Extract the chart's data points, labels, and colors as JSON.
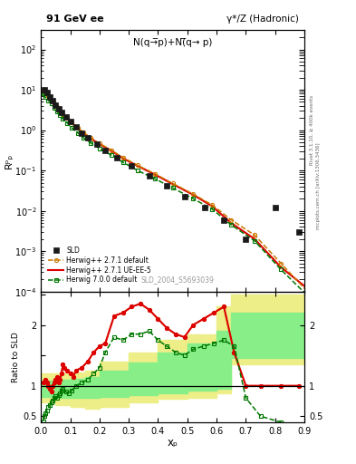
{
  "title_left": "91 GeV ee",
  "title_right": "γ*/Z (Hadronic)",
  "ylabel_main": "Rᵖₚ",
  "annotation": "N(q→̅p)+N(̅q→ p)",
  "watermark": "SLD_2004_S5693039",
  "right_label_top": "Rivet 3.1.10, ≥ 400k events",
  "right_label_bot": "mcplots.cern.ch [arXiv:1306.3436]",
  "xlabel": "xₚ",
  "ylabel_ratio": "Ratio to SLD",
  "sld_x": [
    0.012,
    0.02,
    0.03,
    0.04,
    0.05,
    0.06,
    0.07,
    0.085,
    0.1,
    0.12,
    0.14,
    0.16,
    0.19,
    0.22,
    0.26,
    0.31,
    0.37,
    0.43,
    0.49,
    0.56,
    0.625,
    0.7,
    0.8,
    0.88
  ],
  "sld_y": [
    10.0,
    8.5,
    6.8,
    5.3,
    4.2,
    3.3,
    2.7,
    2.1,
    1.6,
    1.2,
    0.85,
    0.65,
    0.45,
    0.32,
    0.21,
    0.13,
    0.075,
    0.042,
    0.022,
    0.012,
    0.006,
    0.002,
    0.012,
    0.003
  ],
  "hwpp_default_x": [
    0.008,
    0.015,
    0.025,
    0.035,
    0.045,
    0.055,
    0.065,
    0.075,
    0.09,
    0.105,
    0.125,
    0.145,
    0.17,
    0.2,
    0.24,
    0.28,
    0.33,
    0.39,
    0.45,
    0.52,
    0.585,
    0.65,
    0.73,
    0.82,
    0.91
  ],
  "hwpp_default_y": [
    9.5,
    8.0,
    7.0,
    5.8,
    4.7,
    3.8,
    3.1,
    2.5,
    2.0,
    1.55,
    1.15,
    0.88,
    0.65,
    0.47,
    0.32,
    0.21,
    0.135,
    0.082,
    0.048,
    0.026,
    0.014,
    0.006,
    0.0025,
    0.0005,
    0.0001
  ],
  "hwpp_ueee5_x": [
    0.008,
    0.015,
    0.025,
    0.035,
    0.045,
    0.055,
    0.065,
    0.075,
    0.09,
    0.105,
    0.125,
    0.145,
    0.17,
    0.2,
    0.24,
    0.28,
    0.33,
    0.39,
    0.45,
    0.52,
    0.585,
    0.65,
    0.73,
    0.82,
    0.91
  ],
  "hwpp_ueee5_y": [
    9.2,
    7.8,
    6.8,
    5.6,
    4.5,
    3.65,
    3.0,
    2.45,
    1.95,
    1.5,
    1.12,
    0.85,
    0.62,
    0.45,
    0.31,
    0.2,
    0.13,
    0.079,
    0.046,
    0.025,
    0.013,
    0.005,
    0.002,
    0.0004,
    0.00012
  ],
  "hw700_x": [
    0.008,
    0.015,
    0.025,
    0.035,
    0.045,
    0.055,
    0.065,
    0.075,
    0.09,
    0.105,
    0.125,
    0.145,
    0.17,
    0.2,
    0.24,
    0.28,
    0.33,
    0.39,
    0.45,
    0.52,
    0.585,
    0.65,
    0.73,
    0.82,
    0.91
  ],
  "hw700_y": [
    8.0,
    6.5,
    5.5,
    4.5,
    3.6,
    2.9,
    2.35,
    1.9,
    1.5,
    1.15,
    0.86,
    0.65,
    0.48,
    0.35,
    0.24,
    0.16,
    0.1,
    0.062,
    0.037,
    0.02,
    0.011,
    0.0045,
    0.0018,
    0.00035,
    8e-05
  ],
  "ratio_hwpp_ueee5_x": [
    0.008,
    0.015,
    0.02,
    0.025,
    0.03,
    0.035,
    0.04,
    0.045,
    0.05,
    0.055,
    0.06,
    0.065,
    0.07,
    0.075,
    0.08,
    0.09,
    0.1,
    0.11,
    0.12,
    0.14,
    0.16,
    0.18,
    0.2,
    0.22,
    0.25,
    0.28,
    0.31,
    0.34,
    0.37,
    0.4,
    0.43,
    0.46,
    0.49,
    0.52,
    0.555,
    0.59,
    0.625,
    0.66,
    0.7,
    0.75,
    0.82,
    0.88
  ],
  "ratio_hwpp_ueee5_y": [
    1.05,
    1.1,
    1.05,
    1.0,
    0.95,
    0.9,
    1.0,
    1.05,
    1.1,
    1.15,
    1.05,
    1.1,
    1.2,
    1.35,
    1.3,
    1.25,
    1.2,
    1.15,
    1.25,
    1.3,
    1.4,
    1.55,
    1.65,
    1.7,
    2.15,
    2.2,
    2.3,
    2.35,
    2.25,
    2.1,
    1.95,
    1.85,
    1.8,
    2.0,
    2.1,
    2.2,
    2.3,
    1.55,
    1.0,
    1.0,
    1.0,
    1.0
  ],
  "ratio_hwpp_default_x": [
    0.008,
    0.015,
    0.02,
    0.025,
    0.03,
    0.035,
    0.04,
    0.045,
    0.05,
    0.055,
    0.06,
    0.065,
    0.07,
    0.075,
    0.08,
    0.09,
    0.1,
    0.11,
    0.12,
    0.14,
    0.16,
    0.18,
    0.2,
    0.22,
    0.25,
    0.28,
    0.31,
    0.34,
    0.37,
    0.4,
    0.43,
    0.46,
    0.49,
    0.52,
    0.555,
    0.59,
    0.625,
    0.66,
    0.7,
    0.75,
    0.82,
    0.88
  ],
  "ratio_hwpp_default_y": [
    1.05,
    1.1,
    1.05,
    1.0,
    0.95,
    0.9,
    1.0,
    1.05,
    1.1,
    1.15,
    1.05,
    1.1,
    1.2,
    1.35,
    1.3,
    1.25,
    1.2,
    1.15,
    1.25,
    1.3,
    1.4,
    1.55,
    1.65,
    1.7,
    2.15,
    2.2,
    2.3,
    2.35,
    2.25,
    2.1,
    1.95,
    1.85,
    1.8,
    2.0,
    2.1,
    2.2,
    2.3,
    1.55,
    1.0,
    1.0,
    1.0,
    1.0
  ],
  "ratio_hw700_x": [
    0.008,
    0.012,
    0.016,
    0.02,
    0.025,
    0.03,
    0.035,
    0.04,
    0.045,
    0.05,
    0.055,
    0.06,
    0.065,
    0.07,
    0.075,
    0.085,
    0.095,
    0.105,
    0.12,
    0.14,
    0.16,
    0.18,
    0.2,
    0.22,
    0.25,
    0.28,
    0.31,
    0.34,
    0.37,
    0.4,
    0.43,
    0.46,
    0.49,
    0.52,
    0.555,
    0.59,
    0.625,
    0.66,
    0.7,
    0.75,
    0.82,
    0.88
  ],
  "ratio_hw700_y": [
    0.42,
    0.5,
    0.55,
    0.6,
    0.65,
    0.68,
    0.72,
    0.76,
    0.8,
    0.83,
    0.8,
    0.85,
    0.88,
    0.92,
    0.95,
    0.9,
    0.88,
    0.92,
    1.0,
    1.05,
    1.1,
    1.2,
    1.3,
    1.55,
    1.8,
    1.75,
    1.85,
    1.85,
    1.9,
    1.75,
    1.65,
    1.55,
    1.5,
    1.6,
    1.65,
    1.7,
    1.75,
    1.65,
    0.8,
    0.5,
    0.4,
    0.35
  ],
  "band_yellow_edges": [
    0.0,
    0.05,
    0.1,
    0.15,
    0.2,
    0.3,
    0.4,
    0.5,
    0.6,
    0.65,
    0.9
  ],
  "band_yellow_lo": [
    0.72,
    0.68,
    0.65,
    0.62,
    0.65,
    0.72,
    0.78,
    0.8,
    0.88,
    1.35,
    1.35
  ],
  "band_yellow_hi": [
    1.2,
    1.2,
    1.22,
    1.25,
    1.4,
    1.55,
    1.75,
    1.85,
    2.3,
    2.5,
    2.5
  ],
  "band_green_edges": [
    0.0,
    0.05,
    0.1,
    0.15,
    0.2,
    0.3,
    0.4,
    0.5,
    0.6,
    0.65,
    0.9
  ],
  "band_green_lo": [
    0.82,
    0.8,
    0.8,
    0.8,
    0.82,
    0.85,
    0.88,
    0.92,
    0.95,
    1.45,
    1.45
  ],
  "band_green_hi": [
    1.08,
    1.1,
    1.12,
    1.15,
    1.25,
    1.38,
    1.55,
    1.7,
    1.9,
    2.2,
    2.2
  ],
  "color_sld": "#1a1a1a",
  "color_hwpp_default": "#cc7700",
  "color_hwpp_ueee5": "#dd0000",
  "color_hw700": "#007700",
  "color_band_yellow": "#eeee88",
  "color_band_green": "#88ee88",
  "main_ylim_lo": 0.0001,
  "main_ylim_hi": 300,
  "ratio_ylim_lo": 0.4,
  "ratio_ylim_hi": 2.55,
  "xlim_lo": 0.0,
  "xlim_hi": 0.9
}
